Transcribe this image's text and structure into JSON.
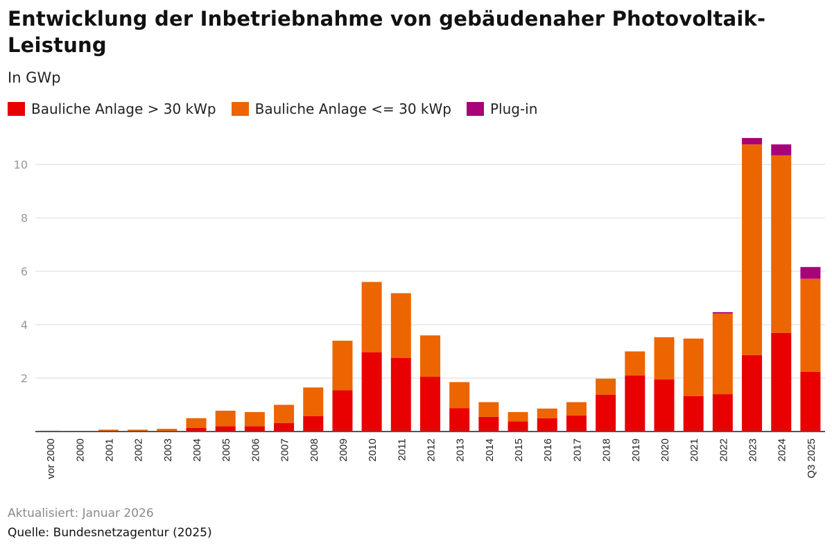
{
  "header": {
    "title": "Entwicklung der Inbetriebnahme von gebäudenaher Photovoltaik-Leistung",
    "subtitle": "In GWp"
  },
  "legend": [
    {
      "label": "Bauliche Anlage > 30 kWp",
      "color": "#e90000"
    },
    {
      "label": "Bauliche Anlage <= 30 kWp",
      "color": "#ec6500"
    },
    {
      "label": "Plug-in",
      "color": "#a8047a"
    }
  ],
  "footer": {
    "updated": "Aktualisiert: Januar 2026",
    "source": "Quelle: Bundesnetzagentur (2025)"
  },
  "chart_data": {
    "type": "bar",
    "stacked": true,
    "title": "Entwicklung der Inbetriebnahme von gebäudenaher Photovoltaik-Leistung",
    "subtitle": "In GWp",
    "xlabel": "",
    "ylabel": "GWp",
    "ylim": [
      0,
      11
    ],
    "yticks": [
      2,
      4,
      6,
      8,
      10
    ],
    "grid": true,
    "legend_position": "top-left",
    "categories": [
      "vor 2000",
      "2000",
      "2001",
      "2002",
      "2003",
      "2004",
      "2005",
      "2006",
      "2007",
      "2008",
      "2009",
      "2010",
      "2011",
      "2012",
      "2013",
      "2014",
      "2015",
      "2016",
      "2017",
      "2018",
      "2019",
      "2020",
      "2021",
      "2022",
      "2023",
      "2024",
      "Q3 2025"
    ],
    "series": [
      {
        "name": "Bauliche Anlage > 30 kWp",
        "color": "#e90000",
        "values": [
          0.0,
          0.0,
          0.01,
          0.01,
          0.02,
          0.13,
          0.2,
          0.2,
          0.32,
          0.58,
          1.55,
          2.97,
          2.76,
          2.05,
          0.87,
          0.55,
          0.38,
          0.5,
          0.6,
          1.38,
          2.1,
          1.95,
          1.33,
          1.4,
          2.86,
          3.69,
          2.24
        ]
      },
      {
        "name": "Bauliche Anlage <= 30 kWp",
        "color": "#ec6500",
        "values": [
          0.03,
          0.0,
          0.06,
          0.06,
          0.08,
          0.37,
          0.58,
          0.53,
          0.68,
          1.07,
          1.85,
          2.63,
          2.42,
          1.55,
          0.98,
          0.55,
          0.35,
          0.36,
          0.5,
          0.6,
          0.9,
          1.58,
          2.15,
          3.02,
          7.89,
          6.65,
          3.48
        ]
      },
      {
        "name": "Plug-in",
        "color": "#a8047a",
        "values": [
          0,
          0,
          0,
          0,
          0,
          0,
          0,
          0,
          0,
          0,
          0,
          0,
          0,
          0,
          0,
          0,
          0,
          0,
          0,
          0,
          0,
          0,
          0,
          0.05,
          0.24,
          0.41,
          0.44
        ]
      }
    ]
  }
}
